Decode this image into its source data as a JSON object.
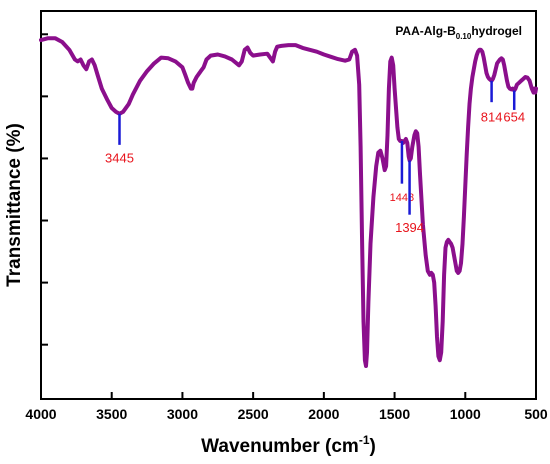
{
  "chart_data": {
    "type": "line",
    "xlabel_main": "Wavenumber (cm",
    "xlabel_sup": "-1",
    "xlabel_end": ")",
    "ylabel": "Transmittance (%)",
    "legend_main": "PAA-Alg-B",
    "legend_sub": "0.10",
    "legend_end": "hydrogel",
    "xlim": [
      4000,
      500
    ],
    "x_reversed": true,
    "ylim": [
      0,
      1
    ],
    "y_tick_labels_shown": false,
    "line_color": "#8b0f8c",
    "annotation_color": "#e8141c",
    "marker_color": "#1a1ad6",
    "x_ticks": [
      {
        "value": 4000,
        "label": "4000"
      },
      {
        "value": 3500,
        "label": "3500"
      },
      {
        "value": 3000,
        "label": "3000"
      },
      {
        "value": 2500,
        "label": "2500"
      },
      {
        "value": 2000,
        "label": "2000"
      },
      {
        "value": 1500,
        "label": "1500"
      },
      {
        "value": 1000,
        "label": "1000"
      },
      {
        "value": 500,
        "label": "500"
      }
    ],
    "y_ticks": [
      0.94,
      0.78,
      0.62,
      0.46,
      0.3,
      0.14
    ],
    "annotations": [
      {
        "x": 3445,
        "label": "3445",
        "y_peak": 0.735,
        "y_line_end": 0.655,
        "label_y": 0.61,
        "size": "large"
      },
      {
        "x": 1448,
        "label": "1448",
        "y_peak": 0.665,
        "y_line_end": 0.555,
        "label_y": 0.51,
        "size": "small"
      },
      {
        "x": 1394,
        "label": "1394",
        "y_peak": 0.615,
        "y_line_end": 0.475,
        "label_y": 0.43,
        "size": "large"
      },
      {
        "x": 814,
        "label": "814",
        "y_peak": 0.82,
        "y_line_end": 0.765,
        "label_y": 0.715,
        "size": "large"
      },
      {
        "x": 654,
        "label": "654",
        "y_peak": 0.795,
        "y_line_end": 0.745,
        "label_y": 0.715,
        "size": "large"
      }
    ],
    "series": [
      {
        "points": [
          [
            4000,
            0.925
          ],
          [
            3950,
            0.93
          ],
          [
            3900,
            0.93
          ],
          [
            3850,
            0.92
          ],
          [
            3800,
            0.9
          ],
          [
            3760,
            0.875
          ],
          [
            3740,
            0.87
          ],
          [
            3720,
            0.875
          ],
          [
            3700,
            0.86
          ],
          [
            3680,
            0.85
          ],
          [
            3660,
            0.87
          ],
          [
            3640,
            0.875
          ],
          [
            3620,
            0.86
          ],
          [
            3600,
            0.835
          ],
          [
            3570,
            0.8
          ],
          [
            3530,
            0.77
          ],
          [
            3500,
            0.75
          ],
          [
            3470,
            0.74
          ],
          [
            3445,
            0.735
          ],
          [
            3420,
            0.74
          ],
          [
            3380,
            0.76
          ],
          [
            3350,
            0.785
          ],
          [
            3300,
            0.82
          ],
          [
            3250,
            0.845
          ],
          [
            3200,
            0.865
          ],
          [
            3150,
            0.88
          ],
          [
            3100,
            0.878
          ],
          [
            3050,
            0.87
          ],
          [
            3000,
            0.855
          ],
          [
            2980,
            0.835
          ],
          [
            2960,
            0.815
          ],
          [
            2940,
            0.8
          ],
          [
            2930,
            0.8
          ],
          [
            2920,
            0.815
          ],
          [
            2900,
            0.83
          ],
          [
            2880,
            0.84
          ],
          [
            2870,
            0.845
          ],
          [
            2850,
            0.855
          ],
          [
            2830,
            0.875
          ],
          [
            2800,
            0.885
          ],
          [
            2750,
            0.888
          ],
          [
            2700,
            0.883
          ],
          [
            2650,
            0.875
          ],
          [
            2600,
            0.86
          ],
          [
            2580,
            0.87
          ],
          [
            2560,
            0.9
          ],
          [
            2540,
            0.906
          ],
          [
            2520,
            0.892
          ],
          [
            2500,
            0.885
          ],
          [
            2450,
            0.888
          ],
          [
            2400,
            0.89
          ],
          [
            2380,
            0.88
          ],
          [
            2360,
            0.87
          ],
          [
            2345,
            0.895
          ],
          [
            2330,
            0.908
          ],
          [
            2300,
            0.91
          ],
          [
            2250,
            0.912
          ],
          [
            2200,
            0.912
          ],
          [
            2150,
            0.905
          ],
          [
            2100,
            0.9
          ],
          [
            2050,
            0.895
          ],
          [
            2000,
            0.888
          ],
          [
            1950,
            0.882
          ],
          [
            1900,
            0.876
          ],
          [
            1850,
            0.872
          ],
          [
            1820,
            0.875
          ],
          [
            1800,
            0.895
          ],
          [
            1780,
            0.9
          ],
          [
            1765,
            0.885
          ],
          [
            1750,
            0.81
          ],
          [
            1740,
            0.65
          ],
          [
            1730,
            0.42
          ],
          [
            1720,
            0.2
          ],
          [
            1710,
            0.1
          ],
          [
            1702,
            0.085
          ],
          [
            1695,
            0.12
          ],
          [
            1685,
            0.25
          ],
          [
            1670,
            0.4
          ],
          [
            1650,
            0.52
          ],
          [
            1630,
            0.6
          ],
          [
            1615,
            0.635
          ],
          [
            1600,
            0.64
          ],
          [
            1585,
            0.62
          ],
          [
            1570,
            0.59
          ],
          [
            1560,
            0.6
          ],
          [
            1550,
            0.68
          ],
          [
            1540,
            0.8
          ],
          [
            1530,
            0.87
          ],
          [
            1520,
            0.88
          ],
          [
            1510,
            0.86
          ],
          [
            1500,
            0.8
          ],
          [
            1490,
            0.75
          ],
          [
            1480,
            0.7
          ],
          [
            1470,
            0.67
          ],
          [
            1460,
            0.665
          ],
          [
            1448,
            0.665
          ],
          [
            1440,
            0.66
          ],
          [
            1430,
            0.665
          ],
          [
            1420,
            0.67
          ],
          [
            1410,
            0.66
          ],
          [
            1400,
            0.625
          ],
          [
            1394,
            0.615
          ],
          [
            1385,
            0.62
          ],
          [
            1375,
            0.65
          ],
          [
            1360,
            0.68
          ],
          [
            1350,
            0.69
          ],
          [
            1340,
            0.685
          ],
          [
            1330,
            0.65
          ],
          [
            1320,
            0.58
          ],
          [
            1300,
            0.45
          ],
          [
            1280,
            0.37
          ],
          [
            1265,
            0.33
          ],
          [
            1250,
            0.32
          ],
          [
            1240,
            0.325
          ],
          [
            1230,
            0.32
          ],
          [
            1220,
            0.3
          ],
          [
            1210,
            0.24
          ],
          [
            1200,
            0.16
          ],
          [
            1190,
            0.11
          ],
          [
            1180,
            0.1
          ],
          [
            1170,
            0.12
          ],
          [
            1160,
            0.2
          ],
          [
            1150,
            0.32
          ],
          [
            1140,
            0.39
          ],
          [
            1130,
            0.405
          ],
          [
            1120,
            0.41
          ],
          [
            1110,
            0.405
          ],
          [
            1100,
            0.4
          ],
          [
            1090,
            0.39
          ],
          [
            1080,
            0.37
          ],
          [
            1070,
            0.35
          ],
          [
            1060,
            0.33
          ],
          [
            1050,
            0.325
          ],
          [
            1040,
            0.33
          ],
          [
            1030,
            0.35
          ],
          [
            1020,
            0.4
          ],
          [
            1010,
            0.47
          ],
          [
            1000,
            0.55
          ],
          [
            990,
            0.63
          ],
          [
            980,
            0.7
          ],
          [
            970,
            0.76
          ],
          [
            960,
            0.8
          ],
          [
            950,
            0.83
          ],
          [
            940,
            0.85
          ],
          [
            930,
            0.87
          ],
          [
            920,
            0.885
          ],
          [
            910,
            0.895
          ],
          [
            900,
            0.9
          ],
          [
            890,
            0.9
          ],
          [
            880,
            0.895
          ],
          [
            870,
            0.88
          ],
          [
            860,
            0.86
          ],
          [
            850,
            0.84
          ],
          [
            840,
            0.83
          ],
          [
            830,
            0.825
          ],
          [
            820,
            0.822
          ],
          [
            814,
            0.82
          ],
          [
            805,
            0.825
          ],
          [
            795,
            0.835
          ],
          [
            785,
            0.85
          ],
          [
            775,
            0.865
          ],
          [
            765,
            0.87
          ],
          [
            755,
            0.875
          ],
          [
            745,
            0.878
          ],
          [
            735,
            0.875
          ],
          [
            725,
            0.86
          ],
          [
            715,
            0.84
          ],
          [
            705,
            0.82
          ],
          [
            695,
            0.805
          ],
          [
            685,
            0.8
          ],
          [
            675,
            0.798
          ],
          [
            665,
            0.8
          ],
          [
            654,
            0.795
          ],
          [
            645,
            0.8
          ],
          [
            635,
            0.81
          ],
          [
            620,
            0.815
          ],
          [
            605,
            0.82
          ],
          [
            590,
            0.825
          ],
          [
            575,
            0.83
          ],
          [
            560,
            0.828
          ],
          [
            545,
            0.82
          ],
          [
            530,
            0.8
          ],
          [
            518,
            0.79
          ],
          [
            510,
            0.8
          ],
          [
            505,
            0.79
          ],
          [
            500,
            0.8
          ]
        ]
      }
    ]
  }
}
